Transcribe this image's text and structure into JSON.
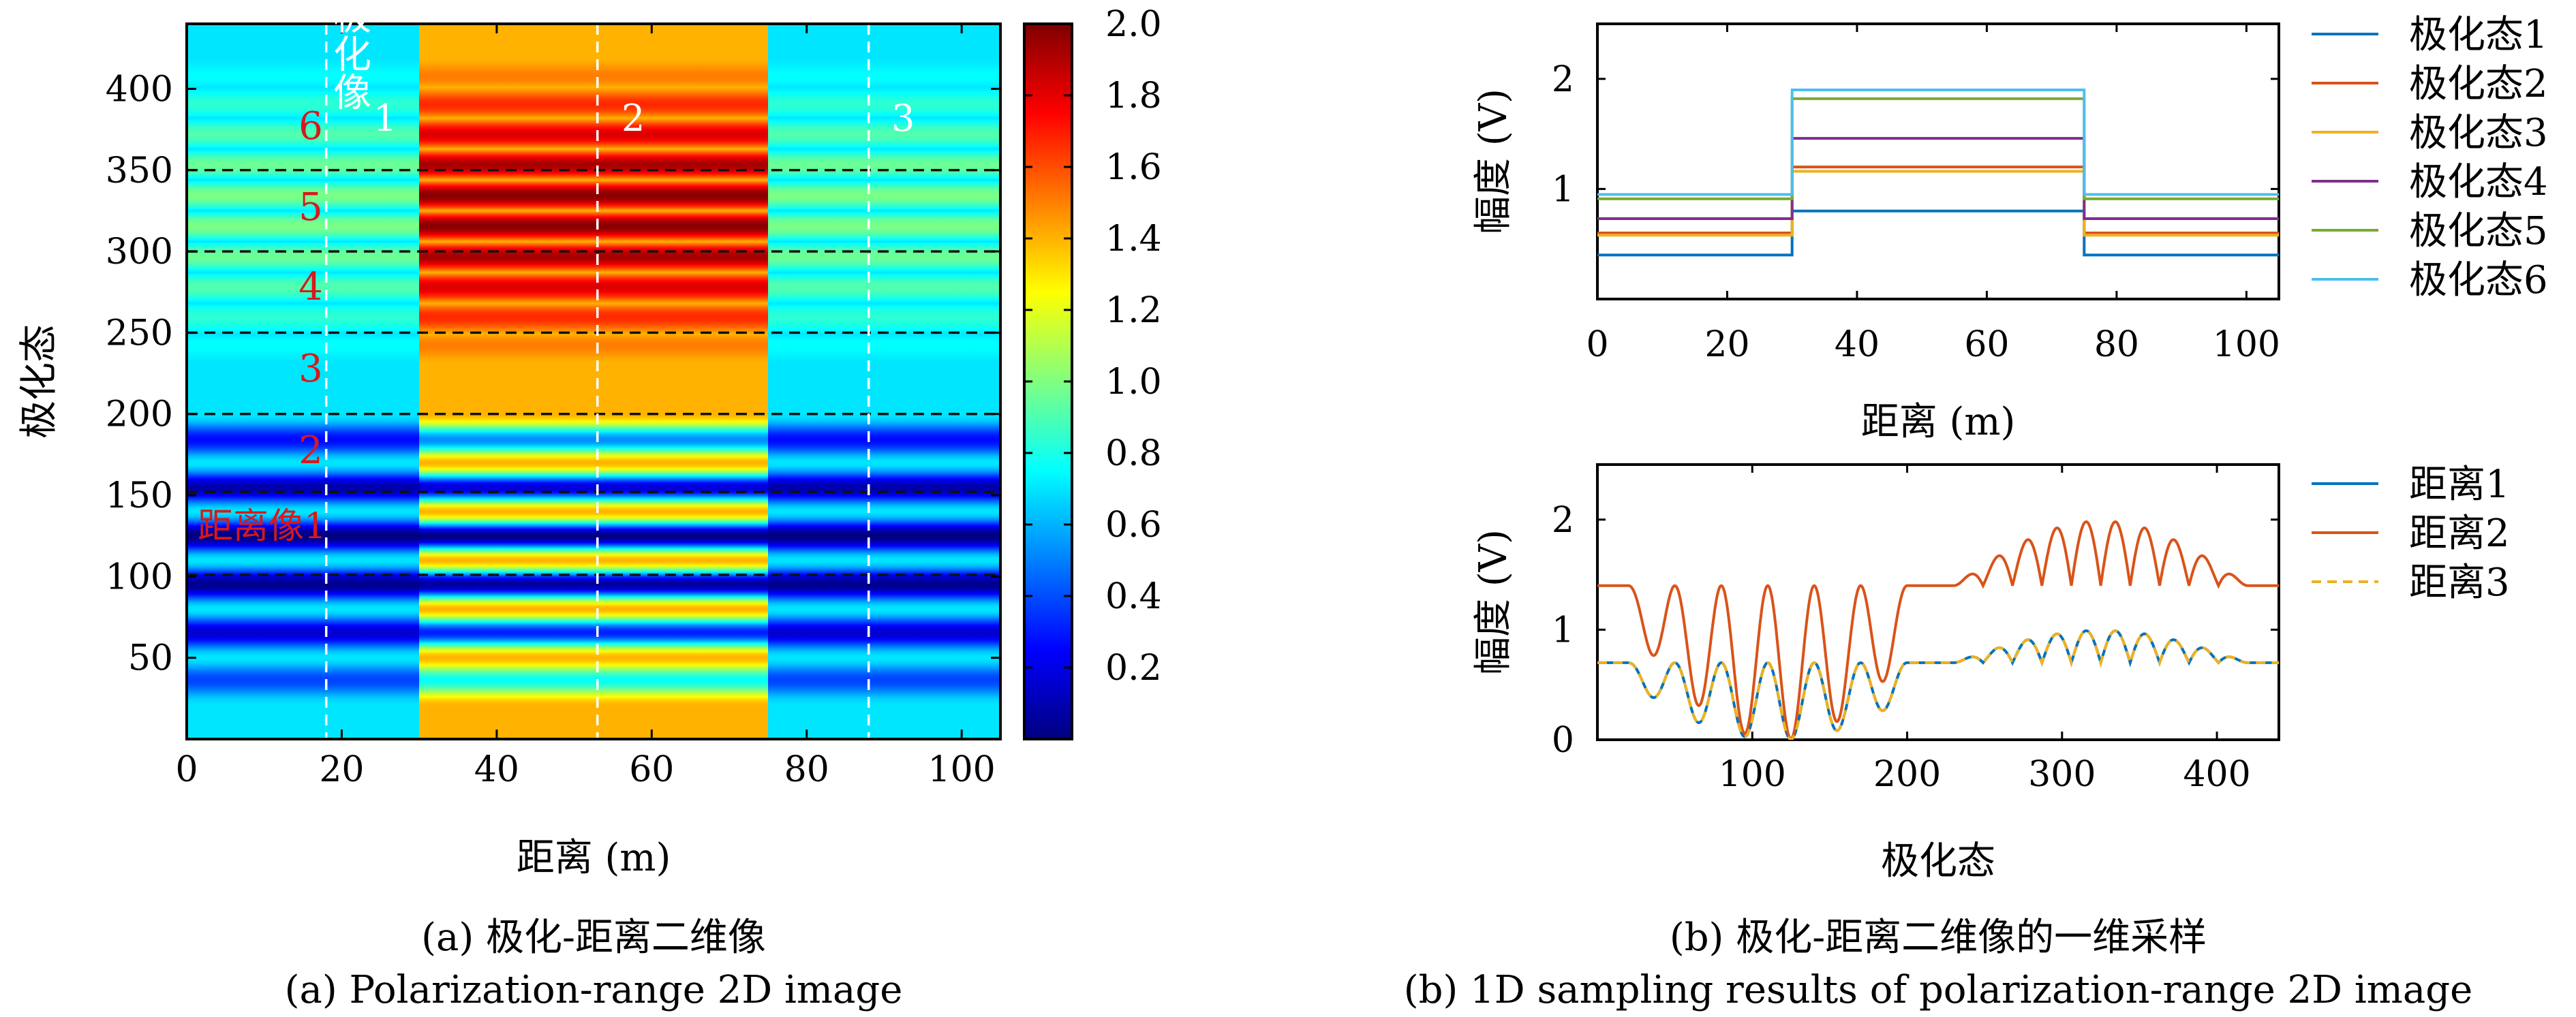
{
  "colors": {
    "jet": [
      "#00007f",
      "#0000ff",
      "#0080ff",
      "#00ffff",
      "#80ff80",
      "#ffff00",
      "#ff8000",
      "#ff0000",
      "#7f0000"
    ],
    "series": [
      "#0072bd",
      "#d95319",
      "#edb120",
      "#7e2f8e",
      "#77ac30",
      "#4dbeee"
    ],
    "annotation_red": "#d7191c"
  },
  "chart_data": [
    {
      "type": "heatmap",
      "title": "",
      "xlabel": "距离 (m)",
      "ylabel": "极化态",
      "xlim": [
        0,
        105
      ],
      "ylim": [
        0,
        440
      ],
      "xticks": [
        "0",
        "20",
        "40",
        "60",
        "80",
        "100"
      ],
      "yticks": [
        "50",
        "100",
        "150",
        "200",
        "250",
        "300",
        "350",
        "400"
      ],
      "clim": [
        0,
        2.0
      ],
      "colorbar_ticks": [
        "0.2",
        "0.4",
        "0.6",
        "0.8",
        "1.0",
        "1.2",
        "1.4",
        "1.6",
        "1.8",
        "2.0"
      ],
      "range_segments": [
        {
          "x": [
            0,
            30
          ],
          "base_value": 0.7
        },
        {
          "x": [
            30,
            75
          ],
          "base_value": 1.4
        },
        {
          "x": [
            75,
            105
          ],
          "base_value": 0.7
        }
      ],
      "vertical_sample_lines_x": [
        18,
        53,
        88
      ],
      "vertical_sample_labels": [
        "1",
        "2",
        "3"
      ],
      "horizontal_cut_lines_y": [
        101,
        152,
        200,
        250,
        300,
        350
      ],
      "polarization_labels": [
        "6",
        "5",
        "4",
        "3",
        "2"
      ],
      "annotations": {
        "polarization_image": "极化像",
        "range_image": "距离像1"
      }
    },
    {
      "type": "line",
      "title": "",
      "xlabel": "距离 (m)",
      "ylabel": "幅度 (V)",
      "xlim": [
        0,
        105
      ],
      "ylim": [
        0,
        2.5
      ],
      "xticks": [
        "0",
        "20",
        "40",
        "60",
        "80",
        "100"
      ],
      "yticks": [
        "1",
        "2"
      ],
      "legend_position": "right",
      "series": [
        {
          "name": "极化态1",
          "points": [
            [
              0,
              0.4
            ],
            [
              30,
              0.4
            ],
            [
              30,
              0.8
            ],
            [
              75,
              0.8
            ],
            [
              75,
              0.4
            ],
            [
              105,
              0.4
            ]
          ]
        },
        {
          "name": "极化态2",
          "points": [
            [
              0,
              0.6
            ],
            [
              30,
              0.6
            ],
            [
              30,
              1.2
            ],
            [
              75,
              1.2
            ],
            [
              75,
              0.6
            ],
            [
              105,
              0.6
            ]
          ]
        },
        {
          "name": "极化态3",
          "points": [
            [
              0,
              0.58
            ],
            [
              30,
              0.58
            ],
            [
              30,
              1.16
            ],
            [
              75,
              1.16
            ],
            [
              75,
              0.58
            ],
            [
              105,
              0.58
            ]
          ]
        },
        {
          "name": "极化态4",
          "points": [
            [
              0,
              0.73
            ],
            [
              30,
              0.73
            ],
            [
              30,
              1.46
            ],
            [
              75,
              1.46
            ],
            [
              75,
              0.73
            ],
            [
              105,
              0.73
            ]
          ]
        },
        {
          "name": "极化态5",
          "points": [
            [
              0,
              0.91
            ],
            [
              30,
              0.91
            ],
            [
              30,
              1.82
            ],
            [
              75,
              1.82
            ],
            [
              75,
              0.91
            ],
            [
              105,
              0.91
            ]
          ]
        },
        {
          "name": "极化态6",
          "points": [
            [
              0,
              0.95
            ],
            [
              30,
              0.95
            ],
            [
              30,
              1.9
            ],
            [
              75,
              1.9
            ],
            [
              75,
              0.95
            ],
            [
              105,
              0.95
            ]
          ]
        }
      ]
    },
    {
      "type": "line",
      "title": "",
      "xlabel": "极化态",
      "ylabel": "幅度 (V)",
      "xlim": [
        0,
        440
      ],
      "ylim": [
        0,
        2.5
      ],
      "xticks": [
        "100",
        "200",
        "300",
        "400"
      ],
      "yticks": [
        "0",
        "1",
        "2"
      ],
      "legend_position": "right",
      "series": [
        {
          "name": "距离1",
          "amplitude": 0.7,
          "dashed": false
        },
        {
          "name": "距离2",
          "amplitude": 1.4,
          "dashed": false
        },
        {
          "name": "距离3",
          "amplitude": 0.7,
          "dashed": true
        }
      ],
      "oscillation_profile": {
        "lower_segment_polarization_range": [
          20,
          200
        ],
        "upper_segment_polarization_range": [
          230,
          420
        ],
        "minimum_polarization_state": 117
      }
    }
  ],
  "captions": {
    "a_zh": "(a) 极化-距离二维像",
    "a_en": "(a) Polarization-range 2D image",
    "b_zh": "(b) 极化-距离二维像的一维采样",
    "b_en": "(b) 1D sampling results of polarization-range 2D image"
  }
}
